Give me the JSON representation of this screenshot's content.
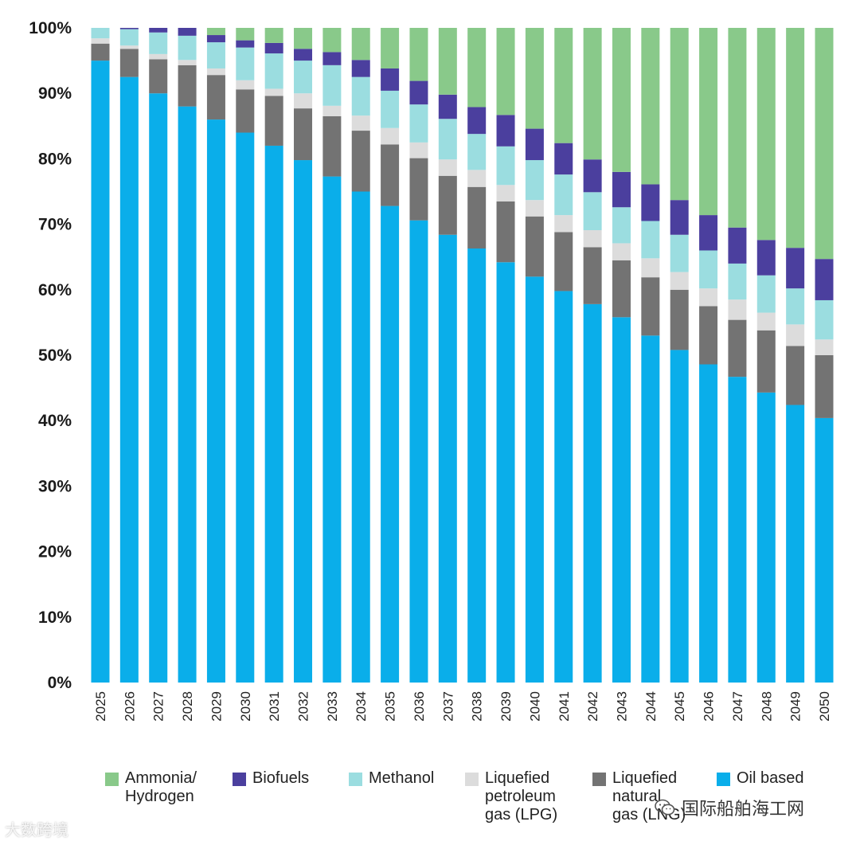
{
  "chart_data": {
    "type": "bar",
    "stacked": true,
    "title": "",
    "xlabel": "",
    "ylabel": "",
    "ylim": [
      0,
      100
    ],
    "y_ticks": [
      "0%",
      "10%",
      "20%",
      "30%",
      "40%",
      "50%",
      "60%",
      "70%",
      "80%",
      "90%",
      "100%"
    ],
    "categories": [
      "2025",
      "2026",
      "2027",
      "2028",
      "2029",
      "2030",
      "2031",
      "2032",
      "2033",
      "2034",
      "2035",
      "2036",
      "2037",
      "2038",
      "2039",
      "2040",
      "2041",
      "2042",
      "2043",
      "2044",
      "2045",
      "2046",
      "2047",
      "2048",
      "2049",
      "2050"
    ],
    "series": [
      {
        "name": "Oil based",
        "legend_label": "Oil based",
        "color": "#0aaeea",
        "values": [
          95.0,
          92.5,
          90.0,
          88.0,
          86.0,
          84.0,
          82.0,
          79.8,
          77.3,
          75.0,
          72.8,
          70.6,
          68.4,
          66.3,
          64.2,
          62.0,
          59.8,
          57.8,
          55.8,
          53.0,
          50.8,
          48.6,
          46.7,
          44.3,
          42.4,
          40.4
        ]
      },
      {
        "name": "Liquefied natural gas (LNG)",
        "legend_label": "Liquefied\nnatural\ngas (LNG)",
        "color": "#737373",
        "values": [
          2.6,
          4.3,
          5.2,
          6.3,
          6.8,
          6.6,
          7.6,
          7.9,
          9.2,
          9.3,
          9.4,
          9.5,
          9.0,
          9.4,
          9.3,
          9.2,
          9.0,
          8.7,
          8.7,
          8.9,
          9.2,
          8.9,
          8.7,
          9.5,
          9.0,
          9.6
        ]
      },
      {
        "name": "Liquefied petroleum gas (LPG)",
        "legend_label": "Liquefied\npetroleum\ngas (LPG)",
        "color": "#dcdcdc",
        "values": [
          0.8,
          0.5,
          0.8,
          0.8,
          1.0,
          1.4,
          1.1,
          2.3,
          1.6,
          2.3,
          2.5,
          2.4,
          2.5,
          2.6,
          2.5,
          2.5,
          2.6,
          2.6,
          2.6,
          2.9,
          2.7,
          2.7,
          3.1,
          2.7,
          3.3,
          2.4
        ]
      },
      {
        "name": "Methanol",
        "legend_label": "Methanol",
        "color": "#9bdde0",
        "values": [
          1.6,
          2.5,
          3.3,
          3.7,
          4.0,
          5.0,
          5.4,
          5.0,
          6.2,
          5.9,
          5.7,
          5.8,
          6.2,
          5.5,
          5.9,
          6.1,
          6.2,
          5.8,
          5.5,
          5.7,
          5.7,
          5.8,
          5.5,
          5.7,
          5.5,
          6.0
        ]
      },
      {
        "name": "Biofuels",
        "legend_label": "Biofuels",
        "color": "#4b3f9e",
        "values": [
          0.0,
          0.2,
          0.7,
          1.2,
          1.1,
          1.1,
          1.6,
          1.8,
          2.0,
          2.6,
          3.4,
          3.6,
          3.7,
          4.1,
          4.8,
          4.8,
          4.8,
          5.0,
          5.4,
          5.6,
          5.3,
          5.4,
          5.5,
          5.4,
          6.2,
          6.3
        ]
      },
      {
        "name": "Ammonia/Hydrogen",
        "legend_label": "Ammonia/\nHydrogen",
        "color": "#89c98a",
        "values": [
          0.0,
          0.0,
          0.0,
          0.0,
          1.1,
          1.9,
          2.3,
          3.2,
          3.7,
          4.9,
          6.2,
          8.1,
          10.2,
          12.1,
          13.3,
          15.4,
          17.6,
          20.1,
          22.0,
          23.9,
          26.3,
          28.6,
          30.5,
          32.4,
          33.6,
          35.3
        ]
      }
    ],
    "legend_order": [
      "Ammonia/Hydrogen",
      "Biofuels",
      "Methanol",
      "Liquefied petroleum gas (LPG)",
      "Liquefied natural gas (LNG)",
      "Oil based"
    ],
    "legend_position": "bottom",
    "grid": false
  },
  "watermarks": {
    "left": "大数跨境",
    "right": "国际船舶海工网"
  }
}
